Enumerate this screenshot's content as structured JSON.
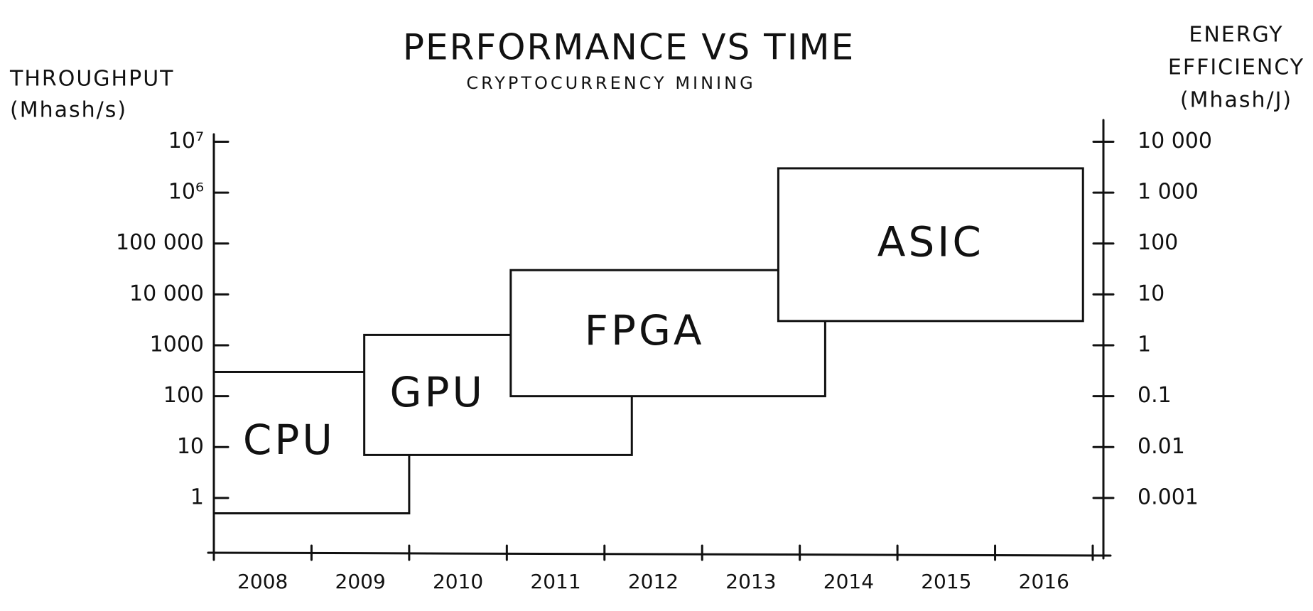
{
  "chart_data": {
    "type": "range-box",
    "title": "PERFORMANCE VS TIME",
    "subtitle": "CRYPTOCURRENCY MINING",
    "ylabel": [
      "THROUGHPUT",
      "(Mhash/s)"
    ],
    "y2label": [
      "ENERGY",
      "EFFICIENCY",
      "(Mhash/J)"
    ],
    "categories": [
      "2008",
      "2009",
      "2010",
      "2011",
      "2012",
      "2013",
      "2014",
      "2015",
      "2016"
    ],
    "xlim": [
      2008,
      2017
    ],
    "xticks": [
      2008,
      2009,
      2010,
      2011,
      2012,
      2013,
      2014,
      2015,
      2016,
      2017
    ],
    "ylog": true,
    "ylim": [
      0.084,
      14000000
    ],
    "yticks": [
      1,
      10,
      100,
      {
        "value": 1000,
        "label": "1000"
      },
      {
        "value": 10000,
        "label": "10 000"
      },
      {
        "value": 100000,
        "label": "100 000"
      },
      {
        "value": 1000000,
        "label": "10⁶"
      },
      {
        "value": 10000000,
        "label": "10⁷"
      }
    ],
    "y2lim": [
      8.4e-05,
      14000
    ],
    "y2ticks": [
      0.001,
      0.01,
      0.1,
      1,
      10,
      100,
      {
        "value": 1000,
        "label": "1 000"
      },
      {
        "value": 10000,
        "label": "10 000"
      }
    ],
    "series": [
      {
        "name": "CPU",
        "start": 2008,
        "end": 2010,
        "low": 0.5,
        "high": 300
      },
      {
        "name": "GPU",
        "start": 2009.54,
        "end": 2012.28,
        "low": 7,
        "high": 1600
      },
      {
        "name": "FPGA",
        "start": 2011.04,
        "end": 2014.26,
        "low": 100,
        "high": 30000
      },
      {
        "name": "ASIC",
        "start": 2013.78,
        "end": 2016.9,
        "low": 3000,
        "high": 3000000
      }
    ]
  }
}
